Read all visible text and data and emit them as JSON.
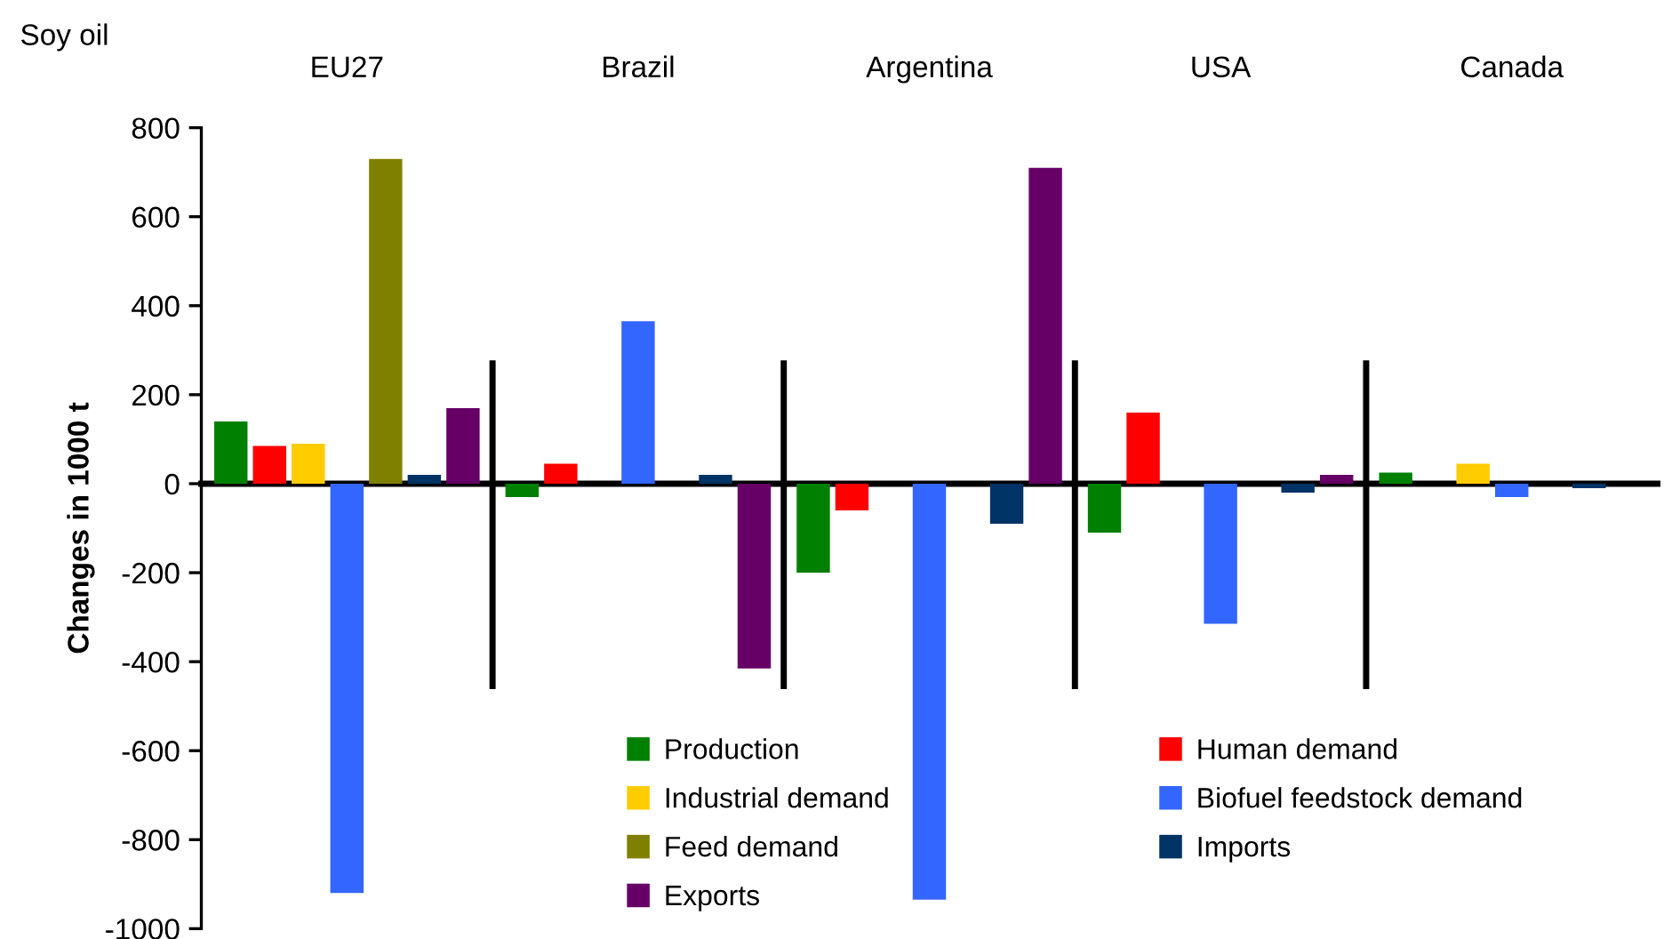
{
  "chart_data": {
    "type": "bar",
    "title": "Soy oil",
    "ylabel": "Changes in 1000 t",
    "categories": [
      "EU27",
      "Brazil",
      "Argentina",
      "USA",
      "Canada"
    ],
    "series": [
      {
        "name": "Production",
        "color": "#008000",
        "values": [
          140,
          -30,
          -200,
          -110,
          25
        ]
      },
      {
        "name": "Human demand",
        "color": "#ff0000",
        "values": [
          85,
          45,
          -60,
          160,
          0
        ]
      },
      {
        "name": "Industrial demand",
        "color": "#ffcc00",
        "values": [
          90,
          0,
          0,
          0,
          45
        ]
      },
      {
        "name": "Biofuel feedstock demand",
        "color": "#3366ff",
        "values": [
          -920,
          365,
          -935,
          -315,
          -30
        ]
      },
      {
        "name": "Feed demand",
        "color": "#808000",
        "values": [
          730,
          0,
          0,
          0,
          0
        ]
      },
      {
        "name": "Imports",
        "color": "#003366",
        "values": [
          20,
          20,
          -90,
          -20,
          -10
        ]
      },
      {
        "name": "Exports",
        "color": "#660066",
        "values": [
          170,
          -415,
          710,
          20,
          0
        ]
      }
    ],
    "ylim": [
      -1000,
      800
    ],
    "yticks": [
      -1000,
      -800,
      -600,
      -400,
      -200,
      0,
      200,
      400,
      600,
      800
    ],
    "legend": "bottom"
  }
}
